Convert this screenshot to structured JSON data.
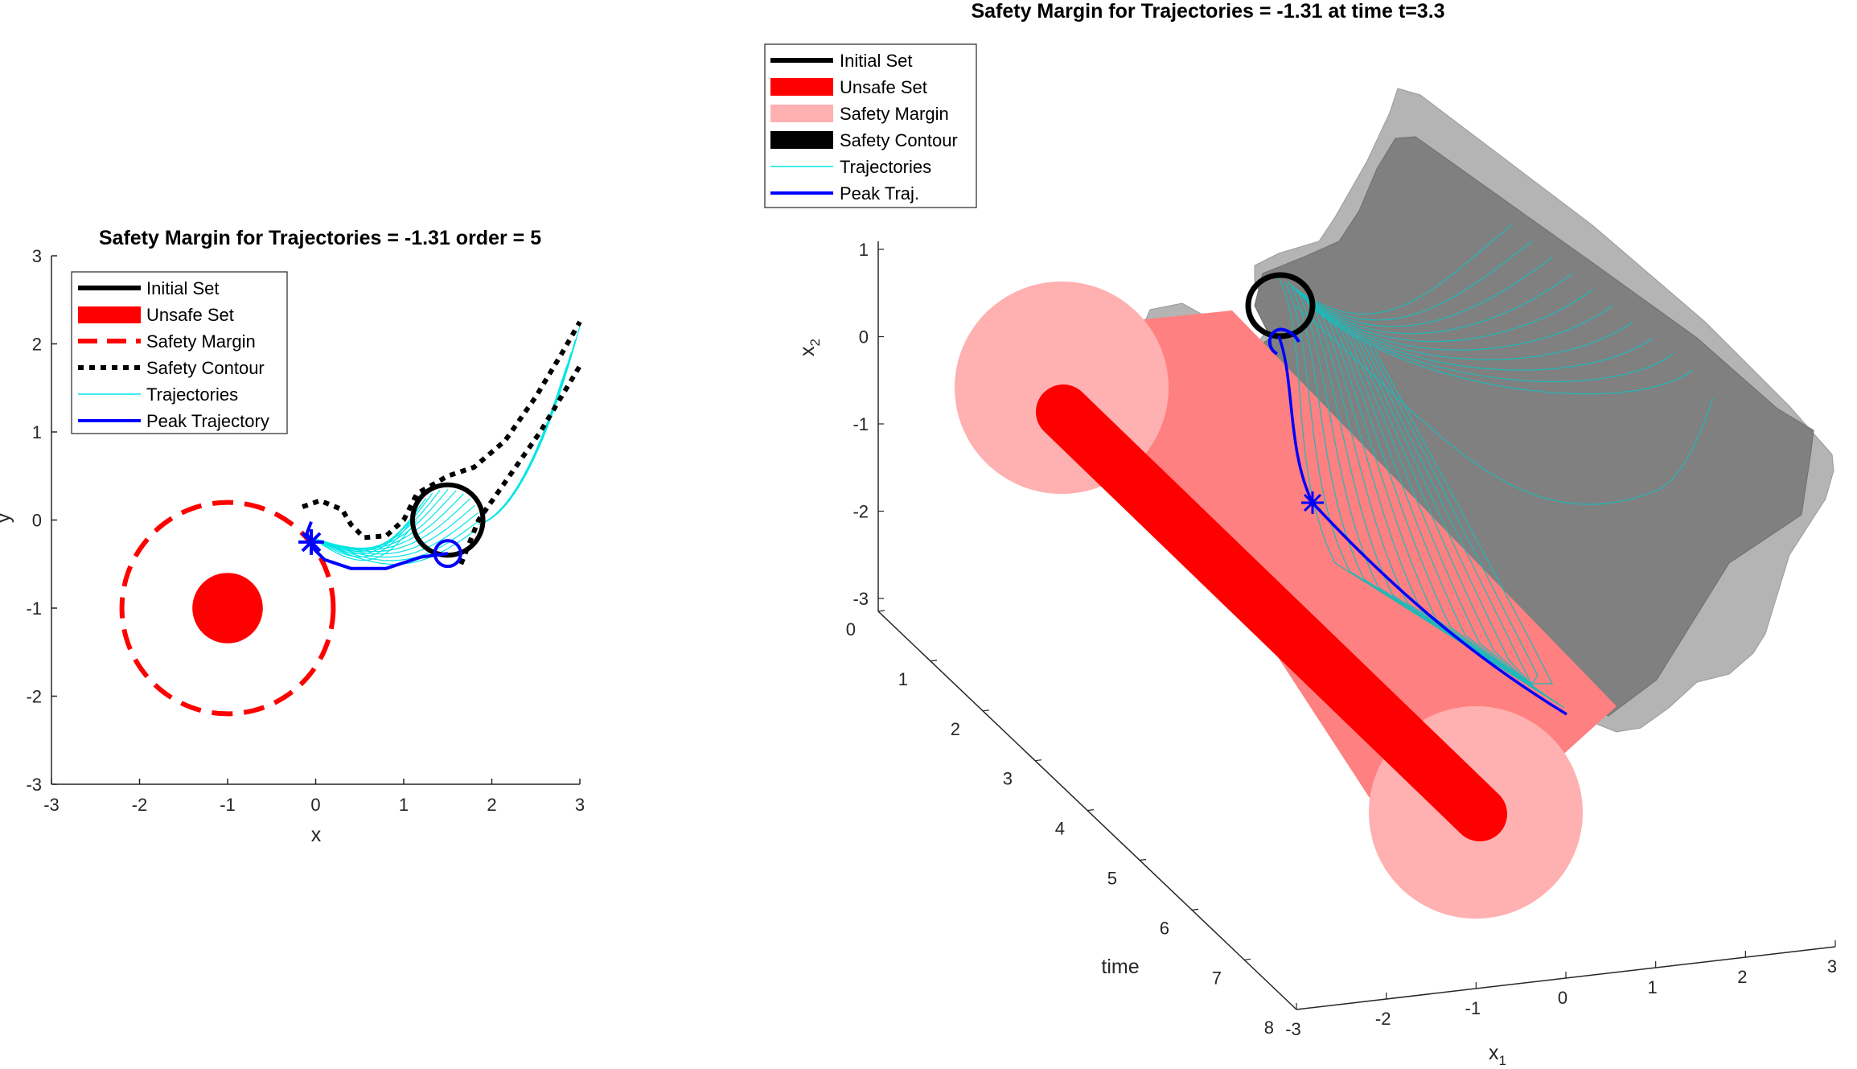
{
  "chart_data": [
    {
      "type": "line",
      "title": "Safety Margin for Trajectories = -1.31 order = 5",
      "xlabel": "x",
      "ylabel": "y",
      "xlim": [
        -3,
        3
      ],
      "ylim": [
        -3,
        3
      ],
      "xticks": [
        "-3",
        "-2",
        "-1",
        "0",
        "1",
        "2",
        "3"
      ],
      "yticks": [
        "-3",
        "-2",
        "-1",
        "0",
        "1",
        "2",
        "3"
      ],
      "grid": false,
      "legend_position": "top-left",
      "legend": [
        "Initial Set",
        "Unsafe Set",
        "Safety Margin",
        "Safety Contour",
        "Trajectories",
        "Peak Trajectory"
      ],
      "initial_set": {
        "center": [
          1.5,
          0
        ],
        "radius": 0.4
      },
      "unsafe_set": {
        "center": [
          -1,
          -1
        ],
        "radius": 0.4
      },
      "safety_margin_circle": {
        "center": [
          -1,
          -1
        ],
        "radius": 1.2
      },
      "safety_contour": [
        [
          -0.15,
          0.15
        ],
        [
          0.05,
          0.22
        ],
        [
          0.3,
          0.12
        ],
        [
          0.4,
          -0.05
        ],
        [
          0.55,
          -0.2
        ],
        [
          0.8,
          -0.18
        ],
        [
          1.0,
          0.0
        ],
        [
          1.15,
          0.3
        ],
        [
          1.5,
          0.5
        ],
        [
          1.8,
          0.6
        ],
        [
          2.15,
          0.9
        ],
        [
          2.5,
          1.4
        ],
        [
          2.8,
          1.9
        ],
        [
          3.0,
          2.25
        ]
      ],
      "safety_contour_lower": [
        [
          1.65,
          -0.5
        ],
        [
          1.85,
          0.0
        ],
        [
          2.2,
          0.5
        ],
        [
          2.55,
          1.0
        ],
        [
          2.85,
          1.5
        ],
        [
          3.0,
          1.75
        ]
      ],
      "peak_trajectory": [
        [
          1.5,
          -0.38
        ],
        [
          1.2,
          -0.42
        ],
        [
          0.8,
          -0.55
        ],
        [
          0.4,
          -0.55
        ],
        [
          0.1,
          -0.45
        ],
        [
          -0.05,
          -0.3
        ],
        [
          -0.1,
          -0.15
        ],
        [
          -0.05,
          -0.02
        ]
      ],
      "peak_point": [
        -0.05,
        -0.25
      ],
      "peak_circle_center": [
        1.5,
        -0.38
      ],
      "colors": {
        "initial": "#000000",
        "unsafe": "#ff0000",
        "margin": "#ff0000",
        "contour": "#000000",
        "traj": "#00e5e5",
        "peak": "#0000ff"
      }
    },
    {
      "type": "surface3d",
      "title": "Safety Margin for Trajectories = -1.31 at time t=3.3",
      "xlabel": "x_1",
      "ylabel": "x_2",
      "zlabel": "time",
      "x1ticks": [
        "-3",
        "-2",
        "-1",
        "0",
        "1",
        "2",
        "3"
      ],
      "x2ticks": [
        "1",
        "0",
        "-1",
        "-2",
        "-3"
      ],
      "timeticks": [
        "0",
        "1",
        "2",
        "3",
        "4",
        "5",
        "6",
        "7",
        "8"
      ],
      "legend_position": "top-left",
      "legend": [
        "Initial Set",
        "Unsafe Set",
        "Safety Margin",
        "Safety Contour",
        "Trajectories",
        "Peak Traj."
      ],
      "colors": {
        "unsafe": "#ff0000",
        "margin": "#ffb0b0",
        "margin_tube": "#ff8080",
        "surface_dark": "#808080",
        "surface_light": "#b4b4b4",
        "traj": "#20b8b8",
        "peak": "#0000ff"
      }
    }
  ]
}
